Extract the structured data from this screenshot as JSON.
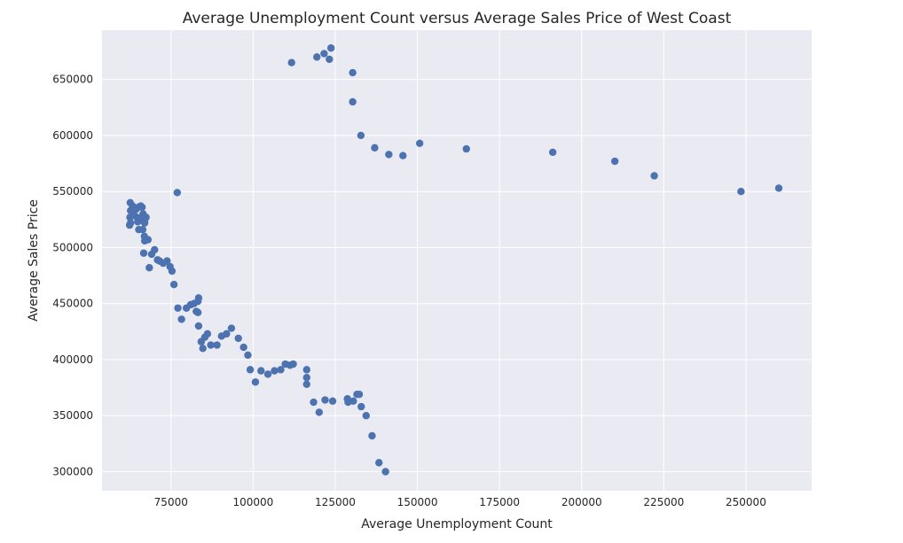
{
  "chart_data": {
    "type": "scatter",
    "title": "Average Unemployment Count versus Average Sales Price of West Coast",
    "xlabel": "Average Unemployment Count",
    "ylabel": "Average Sales Price",
    "xlim": [
      54000,
      270000
    ],
    "ylim": [
      283000,
      694000
    ],
    "xticks": [
      75000,
      100000,
      125000,
      150000,
      175000,
      200000,
      225000,
      250000
    ],
    "xtick_labels": [
      "75000",
      "100000",
      "125000",
      "150000",
      "175000",
      "200000",
      "225000",
      "250000"
    ],
    "yticks": [
      300000,
      350000,
      400000,
      450000,
      500000,
      550000,
      600000,
      650000
    ],
    "ytick_labels": [
      "300000",
      "350000",
      "400000",
      "450000",
      "500000",
      "550000",
      "600000",
      "650000"
    ],
    "grid": true,
    "colors": {
      "background": "#eaeaf2",
      "grid": "#ffffff",
      "point": "#4c72b0"
    },
    "points": [
      [
        62600,
        540000
      ],
      [
        62700,
        533000
      ],
      [
        62500,
        527000
      ],
      [
        62400,
        520000
      ],
      [
        62700,
        522000
      ],
      [
        63300,
        537000
      ],
      [
        63600,
        530000
      ],
      [
        64300,
        534000
      ],
      [
        64600,
        527000
      ],
      [
        64900,
        523000
      ],
      [
        65200,
        516000
      ],
      [
        65100,
        536000
      ],
      [
        65800,
        537000
      ],
      [
        66200,
        536000
      ],
      [
        66000,
        525000
      ],
      [
        66500,
        530000
      ],
      [
        66400,
        516000
      ],
      [
        66900,
        510000
      ],
      [
        67000,
        506000
      ],
      [
        67400,
        527000
      ],
      [
        67000,
        522000
      ],
      [
        67200,
        526000
      ],
      [
        68000,
        507000
      ],
      [
        66700,
        495000
      ],
      [
        68400,
        482000
      ],
      [
        69100,
        494000
      ],
      [
        70000,
        498000
      ],
      [
        70900,
        489000
      ],
      [
        71500,
        488000
      ],
      [
        72600,
        486000
      ],
      [
        73800,
        488000
      ],
      [
        74700,
        483000
      ],
      [
        75300,
        479000
      ],
      [
        75900,
        467000
      ],
      [
        76900,
        549000
      ],
      [
        77100,
        446000
      ],
      [
        78200,
        436000
      ],
      [
        79700,
        446000
      ],
      [
        81000,
        449000
      ],
      [
        82000,
        450000
      ],
      [
        82700,
        443000
      ],
      [
        83200,
        442000
      ],
      [
        83200,
        452000
      ],
      [
        83400,
        455000
      ],
      [
        83400,
        430000
      ],
      [
        84200,
        416000
      ],
      [
        84700,
        410000
      ],
      [
        85300,
        420000
      ],
      [
        86100,
        423000
      ],
      [
        87100,
        413000
      ],
      [
        89000,
        413000
      ],
      [
        90400,
        421000
      ],
      [
        91900,
        423000
      ],
      [
        93400,
        428000
      ],
      [
        95500,
        419000
      ],
      [
        97100,
        411000
      ],
      [
        98400,
        404000
      ],
      [
        99100,
        391000
      ],
      [
        100700,
        380000
      ],
      [
        102400,
        390000
      ],
      [
        104500,
        387000
      ],
      [
        106500,
        390000
      ],
      [
        108400,
        391000
      ],
      [
        109800,
        396000
      ],
      [
        111200,
        395000
      ],
      [
        112200,
        396000
      ],
      [
        116300,
        391000
      ],
      [
        116300,
        384000
      ],
      [
        116300,
        378000
      ],
      [
        118400,
        362000
      ],
      [
        120100,
        353000
      ],
      [
        121900,
        364000
      ],
      [
        124200,
        363000
      ],
      [
        128700,
        365000
      ],
      [
        128900,
        362000
      ],
      [
        130500,
        363000
      ],
      [
        131600,
        369000
      ],
      [
        132300,
        369000
      ],
      [
        132900,
        358000
      ],
      [
        134400,
        350000
      ],
      [
        136200,
        332000
      ],
      [
        138300,
        308000
      ],
      [
        140300,
        300000
      ],
      [
        111700,
        665000
      ],
      [
        119400,
        670000
      ],
      [
        121600,
        673000
      ],
      [
        123200,
        668000
      ],
      [
        123700,
        678000
      ],
      [
        130300,
        656000
      ],
      [
        130300,
        630000
      ],
      [
        132800,
        600000
      ],
      [
        137000,
        589000
      ],
      [
        141300,
        583000
      ],
      [
        145600,
        582000
      ],
      [
        150700,
        593000
      ],
      [
        164900,
        588000
      ],
      [
        191200,
        585000
      ],
      [
        210100,
        577000
      ],
      [
        222100,
        564000
      ],
      [
        248500,
        550000
      ],
      [
        260000,
        553000
      ]
    ]
  }
}
